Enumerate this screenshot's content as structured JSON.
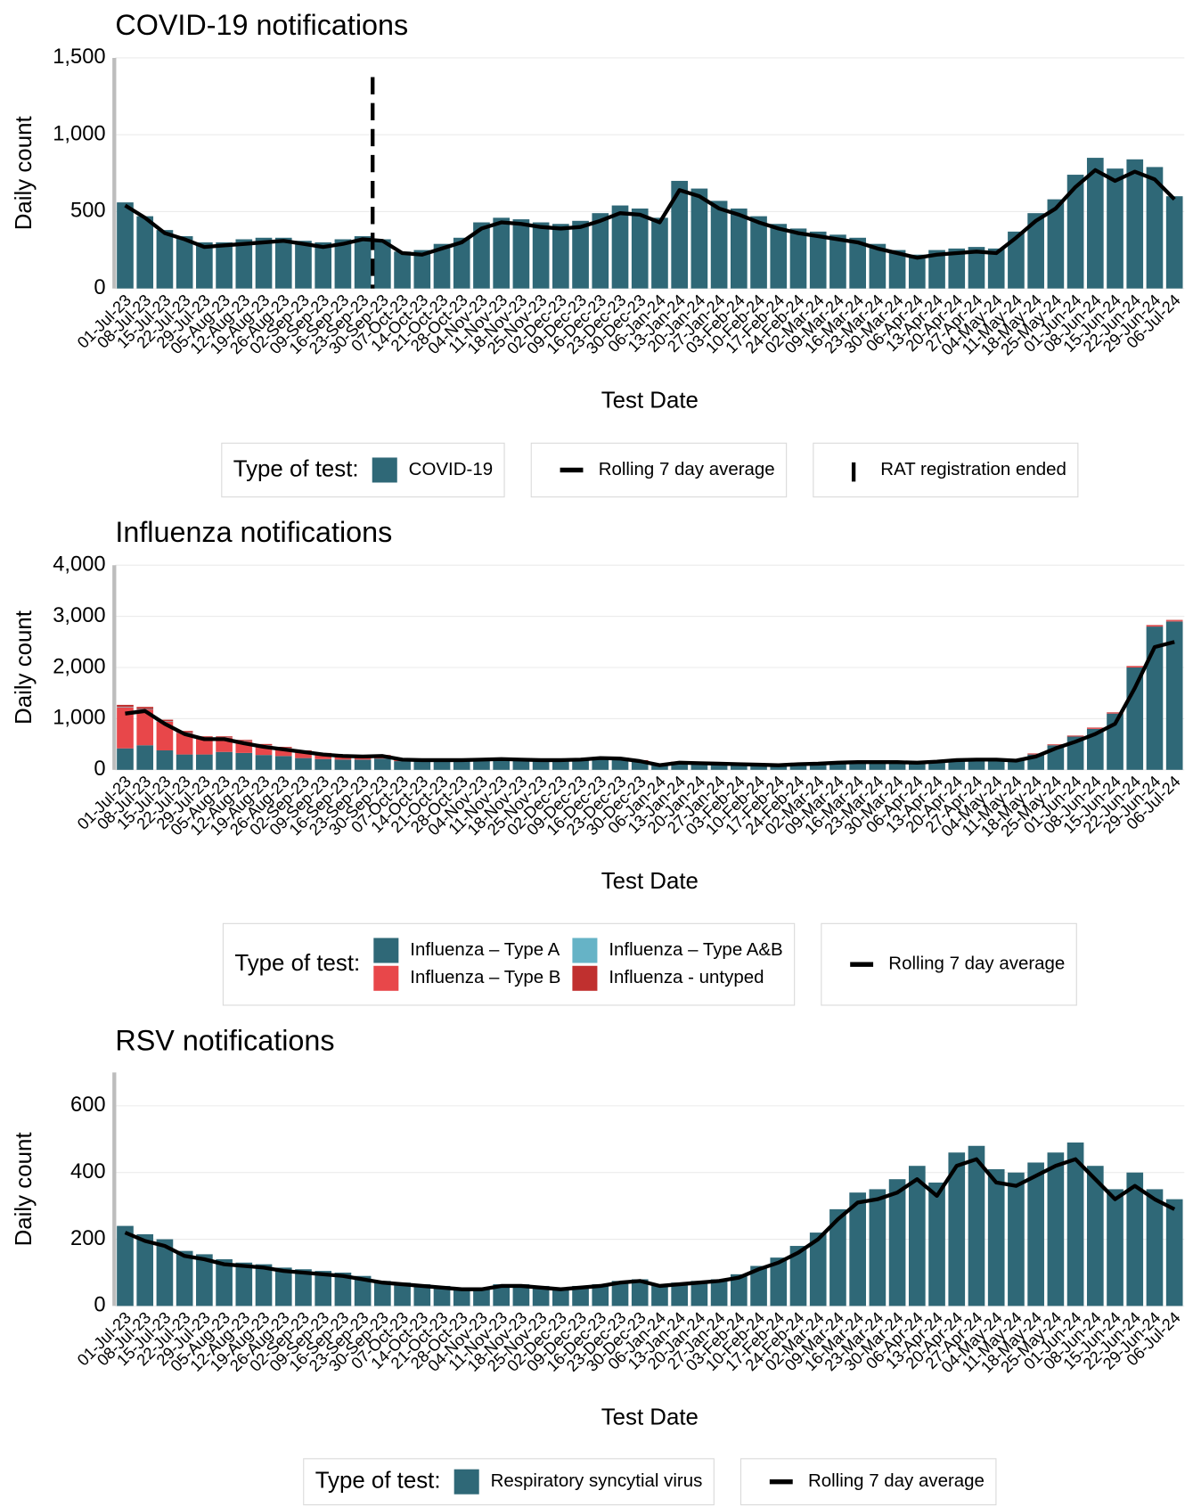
{
  "chart_data": [
    {
      "type": "bar",
      "title": "COVID-19 notifications",
      "y_label": "Daily count",
      "x_label": "Test Date",
      "legend_title": "Type of test:",
      "categories": [
        "01-Jul-23",
        "08-Jul-23",
        "15-Jul-23",
        "22-Jul-23",
        "29-Jul-23",
        "05-Aug-23",
        "12-Aug-23",
        "19-Aug-23",
        "26-Aug-23",
        "02-Sep-23",
        "09-Sep-23",
        "16-Sep-23",
        "23-Sep-23",
        "30-Sep-23",
        "07-Oct-23",
        "14-Oct-23",
        "21-Oct-23",
        "28-Oct-23",
        "04-Nov-23",
        "11-Nov-23",
        "18-Nov-23",
        "25-Nov-23",
        "02-Dec-23",
        "09-Dec-23",
        "16-Dec-23",
        "23-Dec-23",
        "30-Dec-23",
        "06-Jan-24",
        "13-Jan-24",
        "20-Jan-24",
        "27-Jan-24",
        "03-Feb-24",
        "10-Feb-24",
        "17-Feb-24",
        "24-Feb-24",
        "02-Mar-24",
        "09-Mar-24",
        "16-Mar-24",
        "23-Mar-24",
        "30-Mar-24",
        "06-Apr-24",
        "13-Apr-24",
        "20-Apr-24",
        "27-Apr-24",
        "04-May-24",
        "11-May-24",
        "18-May-24",
        "25-May-24",
        "01-Jun-24",
        "08-Jun-24",
        "15-Jun-24",
        "22-Jun-24",
        "29-Jun-24",
        "06-Jul-24"
      ],
      "ylim": [
        0,
        1500
      ],
      "yticks": [
        0,
        500,
        {
          "value": 1000,
          "label": "1,000"
        },
        {
          "value": 1500,
          "label": "1,500"
        }
      ],
      "grid": true,
      "stacked": false,
      "event": {
        "label": "RAT registration ended",
        "at": "30-Sep-23"
      },
      "series": [
        {
          "name": "COVID-19",
          "type": "bar",
          "color": "#2f6877",
          "values": [
            560,
            470,
            380,
            340,
            300,
            300,
            320,
            330,
            330,
            310,
            300,
            320,
            340,
            320,
            240,
            250,
            290,
            330,
            430,
            460,
            450,
            430,
            420,
            440,
            490,
            540,
            520,
            460,
            700,
            650,
            570,
            520,
            470,
            420,
            390,
            370,
            350,
            330,
            290,
            250,
            220,
            250,
            260,
            270,
            260,
            370,
            490,
            580,
            740,
            850,
            780,
            840,
            790,
            600
          ]
        },
        {
          "name": "Rolling 7 day average",
          "type": "line",
          "color": "#000000",
          "values": [
            540,
            460,
            360,
            320,
            270,
            280,
            290,
            300,
            310,
            290,
            270,
            290,
            320,
            310,
            230,
            220,
            260,
            300,
            390,
            430,
            420,
            400,
            390,
            400,
            440,
            490,
            480,
            430,
            640,
            600,
            520,
            480,
            430,
            390,
            360,
            340,
            320,
            300,
            260,
            230,
            200,
            220,
            230,
            240,
            230,
            330,
            440,
            520,
            660,
            770,
            700,
            760,
            710,
            580
          ]
        }
      ]
    },
    {
      "type": "bar",
      "title": "Influenza notifications",
      "y_label": "Daily count",
      "x_label": "Test Date",
      "legend_title": "Type of test:",
      "categories": [
        "01-Jul-23",
        "08-Jul-23",
        "15-Jul-23",
        "22-Jul-23",
        "29-Jul-23",
        "05-Aug-23",
        "12-Aug-23",
        "19-Aug-23",
        "26-Aug-23",
        "02-Sep-23",
        "09-Sep-23",
        "16-Sep-23",
        "23-Sep-23",
        "30-Sep-23",
        "07-Oct-23",
        "14-Oct-23",
        "21-Oct-23",
        "28-Oct-23",
        "04-Nov-23",
        "11-Nov-23",
        "18-Nov-23",
        "25-Nov-23",
        "02-Dec-23",
        "09-Dec-23",
        "16-Dec-23",
        "23-Dec-23",
        "30-Dec-23",
        "06-Jan-24",
        "13-Jan-24",
        "20-Jan-24",
        "27-Jan-24",
        "03-Feb-24",
        "10-Feb-24",
        "17-Feb-24",
        "24-Feb-24",
        "02-Mar-24",
        "09-Mar-24",
        "16-Mar-24",
        "23-Mar-24",
        "30-Mar-24",
        "06-Apr-24",
        "13-Apr-24",
        "20-Apr-24",
        "27-Apr-24",
        "04-May-24",
        "11-May-24",
        "18-May-24",
        "25-May-24",
        "01-Jun-24",
        "08-Jun-24",
        "15-Jun-24",
        "22-Jun-24",
        "29-Jun-24",
        "06-Jul-24"
      ],
      "ylim": [
        0,
        4000
      ],
      "yticks": [
        0,
        {
          "value": 1000,
          "label": "1,000"
        },
        {
          "value": 2000,
          "label": "2,000"
        },
        {
          "value": 3000,
          "label": "3,000"
        },
        {
          "value": 4000,
          "label": "4,000"
        }
      ],
      "grid": true,
      "stacked": true,
      "series": [
        {
          "name": "Influenza – Type A",
          "type": "bar",
          "color": "#2f6877",
          "values": [
            420,
            480,
            380,
            300,
            300,
            350,
            330,
            290,
            270,
            230,
            210,
            200,
            200,
            220,
            170,
            165,
            175,
            180,
            190,
            200,
            190,
            180,
            180,
            190,
            220,
            210,
            165,
            90,
            140,
            130,
            120,
            110,
            95,
            90,
            110,
            120,
            140,
            150,
            150,
            150,
            140,
            160,
            190,
            200,
            200,
            190,
            300,
            480,
            650,
            800,
            1100,
            2000,
            2800,
            2900
          ]
        },
        {
          "name": "Influenza – Type B",
          "type": "bar",
          "color": "#e8474a",
          "values": [
            800,
            700,
            560,
            420,
            330,
            280,
            230,
            190,
            160,
            130,
            110,
            90,
            70,
            60,
            45,
            35,
            30,
            25,
            20,
            20,
            20,
            20,
            20,
            20,
            20,
            20,
            15,
            10,
            10,
            10,
            10,
            10,
            10,
            10,
            10,
            10,
            10,
            10,
            10,
            10,
            10,
            10,
            10,
            10,
            10,
            10,
            10,
            10,
            10,
            15,
            15,
            20,
            20,
            20
          ]
        },
        {
          "name": "Influenza – Type A&B",
          "type": "bar",
          "color": "#66b3c6",
          "values": [
            10,
            10,
            10,
            10,
            5,
            5,
            5,
            5,
            5,
            5,
            0,
            0,
            0,
            0,
            0,
            0,
            0,
            0,
            0,
            0,
            0,
            0,
            0,
            0,
            0,
            0,
            0,
            0,
            0,
            0,
            0,
            0,
            0,
            0,
            0,
            0,
            0,
            0,
            0,
            0,
            0,
            0,
            0,
            0,
            0,
            0,
            0,
            0,
            0,
            0,
            0,
            0,
            0,
            0
          ]
        },
        {
          "name": "Influenza - untyped",
          "type": "bar",
          "color": "#c0302f",
          "values": [
            40,
            40,
            30,
            30,
            20,
            20,
            20,
            20,
            15,
            15,
            10,
            10,
            10,
            10,
            10,
            10,
            10,
            10,
            10,
            10,
            10,
            10,
            10,
            10,
            10,
            10,
            10,
            10,
            10,
            10,
            10,
            10,
            10,
            10,
            10,
            10,
            10,
            10,
            10,
            10,
            10,
            10,
            10,
            10,
            10,
            10,
            10,
            10,
            10,
            10,
            10,
            10,
            10,
            10
          ]
        },
        {
          "name": "Rolling 7 day average",
          "type": "line",
          "color": "#000000",
          "values": [
            1100,
            1150,
            900,
            700,
            600,
            600,
            520,
            450,
            400,
            350,
            300,
            270,
            260,
            270,
            200,
            190,
            190,
            190,
            200,
            210,
            200,
            190,
            190,
            200,
            230,
            220,
            170,
            90,
            140,
            130,
            120,
            110,
            100,
            90,
            110,
            120,
            140,
            150,
            150,
            150,
            140,
            160,
            190,
            200,
            200,
            180,
            260,
            420,
            550,
            700,
            900,
            1600,
            2400,
            2500
          ]
        }
      ]
    },
    {
      "type": "bar",
      "title": "RSV notifications",
      "y_label": "Daily count",
      "x_label": "Test Date",
      "legend_title": "Type of test:",
      "categories": [
        "01-Jul-23",
        "08-Jul-23",
        "15-Jul-23",
        "22-Jul-23",
        "29-Jul-23",
        "05-Aug-23",
        "12-Aug-23",
        "19-Aug-23",
        "26-Aug-23",
        "02-Sep-23",
        "09-Sep-23",
        "16-Sep-23",
        "23-Sep-23",
        "30-Sep-23",
        "07-Oct-23",
        "14-Oct-23",
        "21-Oct-23",
        "28-Oct-23",
        "04-Nov-23",
        "11-Nov-23",
        "18-Nov-23",
        "25-Nov-23",
        "02-Dec-23",
        "09-Dec-23",
        "16-Dec-23",
        "23-Dec-23",
        "30-Dec-23",
        "06-Jan-24",
        "13-Jan-24",
        "20-Jan-24",
        "27-Jan-24",
        "03-Feb-24",
        "10-Feb-24",
        "17-Feb-24",
        "24-Feb-24",
        "02-Mar-24",
        "09-Mar-24",
        "16-Mar-24",
        "23-Mar-24",
        "30-Mar-24",
        "06-Apr-24",
        "13-Apr-24",
        "20-Apr-24",
        "27-Apr-24",
        "04-May-24",
        "11-May-24",
        "18-May-24",
        "25-May-24",
        "01-Jun-24",
        "08-Jun-24",
        "15-Jun-24",
        "22-Jun-24",
        "29-Jun-24",
        "06-Jul-24"
      ],
      "ylim": [
        0,
        700
      ],
      "yticks": [
        0,
        200,
        400,
        600
      ],
      "grid": true,
      "stacked": false,
      "series": [
        {
          "name": "Respiratory syncytial virus",
          "type": "bar",
          "color": "#2f6877",
          "values": [
            240,
            215,
            200,
            165,
            155,
            140,
            130,
            125,
            115,
            110,
            105,
            100,
            90,
            75,
            70,
            65,
            60,
            55,
            55,
            65,
            65,
            60,
            55,
            60,
            65,
            75,
            80,
            65,
            70,
            75,
            80,
            95,
            120,
            145,
            180,
            220,
            290,
            340,
            350,
            380,
            420,
            370,
            460,
            480,
            410,
            400,
            430,
            460,
            490,
            420,
            350,
            400,
            350,
            320
          ]
        },
        {
          "name": "Rolling 7 day average",
          "type": "line",
          "color": "#000000",
          "values": [
            220,
            195,
            180,
            150,
            140,
            125,
            120,
            115,
            105,
            100,
            95,
            90,
            80,
            70,
            65,
            60,
            55,
            50,
            50,
            60,
            60,
            55,
            50,
            55,
            60,
            70,
            75,
            60,
            65,
            70,
            75,
            85,
            110,
            130,
            160,
            200,
            260,
            310,
            320,
            340,
            380,
            330,
            420,
            440,
            370,
            360,
            390,
            420,
            440,
            380,
            320,
            360,
            320,
            290
          ]
        }
      ]
    }
  ]
}
